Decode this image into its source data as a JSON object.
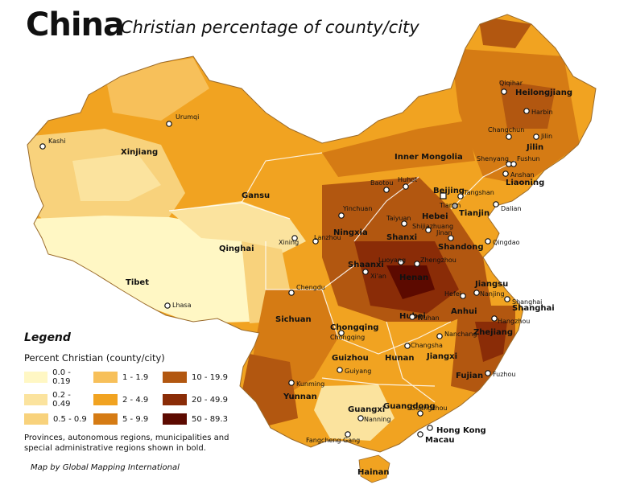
{
  "header": {
    "title": "China",
    "subtitle": "Christian percentage of county/city"
  },
  "legend": {
    "title": "Legend",
    "subtitle": "Percent Christian (county/city)",
    "items": [
      {
        "label": "0.0 - 0.19",
        "color": "#fff7c4"
      },
      {
        "label": "1 - 1.9",
        "color": "#f7c05a"
      },
      {
        "label": "10 - 19.9",
        "color": "#b25710"
      },
      {
        "label": "0.2 - 0.49",
        "color": "#fbe39e"
      },
      {
        "label": "2 - 4.9",
        "color": "#f1a321"
      },
      {
        "label": "20 - 49.9",
        "color": "#8a2c07"
      },
      {
        "label": "0.5 - 0.9",
        "color": "#f8d27c"
      },
      {
        "label": "5 - 9.9",
        "color": "#d57b14"
      },
      {
        "label": "50 - 89.3",
        "color": "#5c0a00"
      }
    ],
    "note": "Provinces, autonomous regions, municipalities and special administrative regions shown in bold."
  },
  "credit": "Map by Global Mapping International",
  "provinces": [
    {
      "label": "Heilongjiang"
    },
    {
      "label": "Jilin"
    },
    {
      "label": "Liaoning"
    },
    {
      "label": "Inner Mongolia"
    },
    {
      "label": "Xinjiang"
    },
    {
      "label": "Gansu"
    },
    {
      "label": "Qinghai"
    },
    {
      "label": "Tibet"
    },
    {
      "label": "Ningxia"
    },
    {
      "label": "Beijing"
    },
    {
      "label": "Tianjin"
    },
    {
      "label": "Hebei"
    },
    {
      "label": "Shanxi"
    },
    {
      "label": "Shandong"
    },
    {
      "label": "Shaanxi"
    },
    {
      "label": "Henan"
    },
    {
      "label": "Jiangsu"
    },
    {
      "label": "Shanghai"
    },
    {
      "label": "Anhui"
    },
    {
      "label": "Hubei"
    },
    {
      "label": "Sichuan"
    },
    {
      "label": "Chongqing"
    },
    {
      "label": "Zhejiang"
    },
    {
      "label": "Jiangxi"
    },
    {
      "label": "Hunan"
    },
    {
      "label": "Guizhou"
    },
    {
      "label": "Fujian"
    },
    {
      "label": "Yunnan"
    },
    {
      "label": "Guangxi"
    },
    {
      "label": "Guangdong"
    },
    {
      "label": "Hong Kong"
    },
    {
      "label": "Macau"
    },
    {
      "label": "Hainan"
    }
  ],
  "cities": [
    {
      "label": "Qiqihar"
    },
    {
      "label": "Harbin"
    },
    {
      "label": "Changchun"
    },
    {
      "label": "Jilin"
    },
    {
      "label": "Shenyang"
    },
    {
      "label": "Fushun"
    },
    {
      "label": "Anshan"
    },
    {
      "label": "Dalian"
    },
    {
      "label": "Urumqi"
    },
    {
      "label": "Kashi"
    },
    {
      "label": "Baotou"
    },
    {
      "label": "Huhot"
    },
    {
      "label": "Tangshan"
    },
    {
      "label": "Tianjin"
    },
    {
      "label": "Yinchuan"
    },
    {
      "label": "Taiyuan"
    },
    {
      "label": "Shijiazhuang"
    },
    {
      "label": "Jinan"
    },
    {
      "label": "Qingdao"
    },
    {
      "label": "Xining"
    },
    {
      "label": "Lanzhou"
    },
    {
      "label": "Luoyang"
    },
    {
      "label": "Zhengzhou"
    },
    {
      "label": "Xi'an"
    },
    {
      "label": "Shanghai"
    },
    {
      "label": "Nanjing"
    },
    {
      "label": "Hefei"
    },
    {
      "label": "Hangzhou"
    },
    {
      "label": "Lhasa"
    },
    {
      "label": "Chengdu"
    },
    {
      "label": "Chongqing"
    },
    {
      "label": "Wuhan"
    },
    {
      "label": "Nanchang"
    },
    {
      "label": "Changsha"
    },
    {
      "label": "Fuzhou"
    },
    {
      "label": "Guiyang"
    },
    {
      "label": "Kunming"
    },
    {
      "label": "Nanning"
    },
    {
      "label": "Guangzhou"
    },
    {
      "label": "Fangcheng Gang"
    }
  ]
}
